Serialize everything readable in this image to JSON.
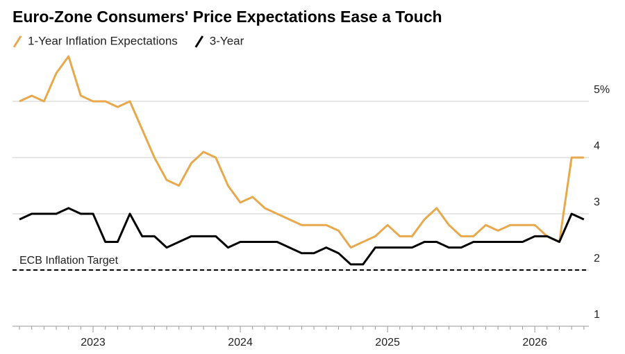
{
  "chart_data": {
    "type": "line",
    "title": "Euro-Zone Consumers' Price Expectations Ease a Touch",
    "categories": [
      null,
      null,
      null,
      null,
      null,
      null,
      "2023",
      null,
      null,
      null,
      null,
      null,
      null,
      null,
      null,
      null,
      null,
      null,
      "2024",
      null,
      null,
      null,
      null,
      null,
      null,
      null,
      null,
      null,
      null,
      null,
      "2025",
      null,
      null,
      null,
      null,
      null,
      null,
      null,
      null,
      null,
      null,
      null,
      "2026",
      null,
      null,
      null,
      null
    ],
    "series": [
      {
        "name": "1-Year Inflation Expectations",
        "color": "#e8a94c",
        "values": [
          5.0,
          5.1,
          5.0,
          5.5,
          5.8,
          5.1,
          5.0,
          5.0,
          4.9,
          5.0,
          4.5,
          4.0,
          3.6,
          3.5,
          3.9,
          4.1,
          4.0,
          3.5,
          3.2,
          3.3,
          3.1,
          3.0,
          2.9,
          2.8,
          2.8,
          2.8,
          2.7,
          2.4,
          2.5,
          2.6,
          2.8,
          2.6,
          2.6,
          2.9,
          3.1,
          2.8,
          2.6,
          2.6,
          2.8,
          2.7,
          2.8,
          2.8,
          2.8,
          2.6,
          2.5,
          4.0,
          4.0
        ]
      },
      {
        "name": "3-Year",
        "color": "#000000",
        "values": [
          2.9,
          3.0,
          3.0,
          3.0,
          3.1,
          3.0,
          3.0,
          2.5,
          2.5,
          3.0,
          2.6,
          2.6,
          2.4,
          2.5,
          2.6,
          2.6,
          2.6,
          2.4,
          2.5,
          2.5,
          2.5,
          2.5,
          2.4,
          2.3,
          2.3,
          2.4,
          2.3,
          2.1,
          2.1,
          2.4,
          2.4,
          2.4,
          2.4,
          2.5,
          2.5,
          2.4,
          2.4,
          2.5,
          2.5,
          2.5,
          2.5,
          2.5,
          2.6,
          2.6,
          2.5,
          3.0,
          2.9
        ]
      }
    ],
    "target": {
      "label": "ECB Inflation Target",
      "value": 2
    },
    "ylim": [
      1,
      5.9
    ],
    "yticks": [
      1,
      2,
      3,
      4,
      {
        "value": 5,
        "label": "5%"
      }
    ],
    "grid": true
  }
}
